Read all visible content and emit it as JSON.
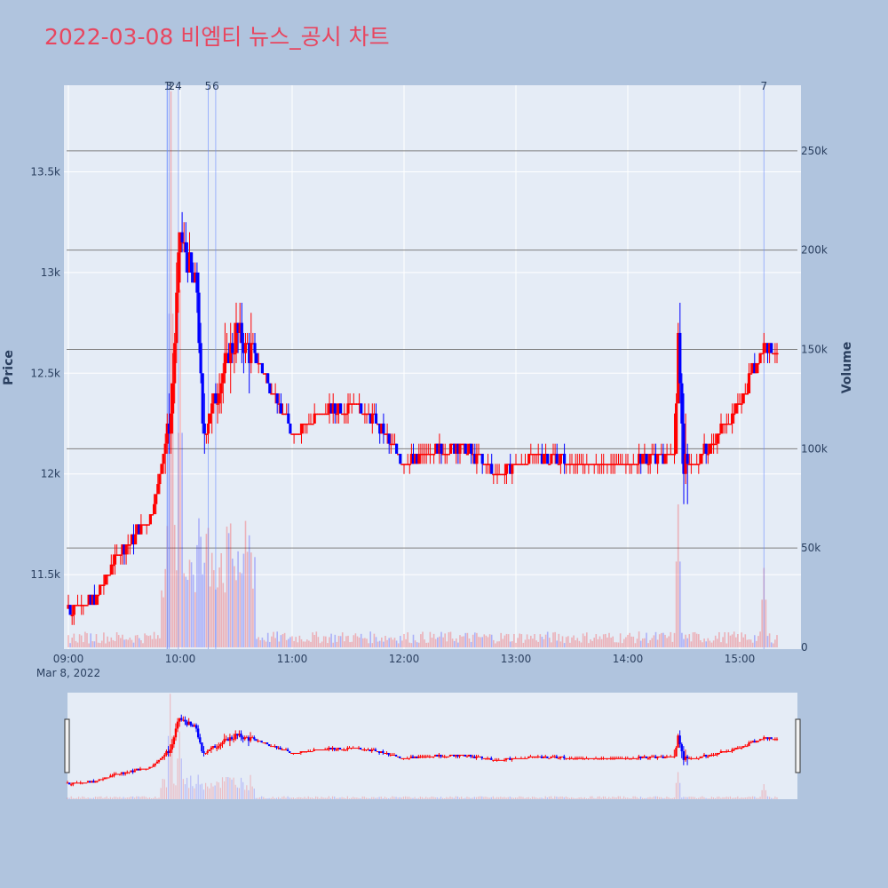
{
  "title": "2022-03-08 비엠티 뉴스_공시 차트",
  "colors": {
    "background": "#b0c4de",
    "plot_bg": "#e5ecf6",
    "up": "#ff0000",
    "down": "#0000ff",
    "title": "#e8465f",
    "hline": "#7f7f7f",
    "news_line": "#6b8cff"
  },
  "chart_data": {
    "type": "candlestick",
    "xlabel": "",
    "ylabel": "Price",
    "y2label": "Volume",
    "date_label": "Mar 8, 2022",
    "x_ticks": [
      "09:00",
      "10:00",
      "11:00",
      "12:00",
      "13:00",
      "14:00",
      "15:00"
    ],
    "x_range": [
      "09:00",
      "15:30"
    ],
    "price_ticks": [
      {
        "value": 11500,
        "label": "11.5k"
      },
      {
        "value": 12000,
        "label": "12k"
      },
      {
        "value": 12500,
        "label": "12.5k"
      },
      {
        "value": 13000,
        "label": "13k"
      },
      {
        "value": 13500,
        "label": "13.5k"
      }
    ],
    "price_range": [
      11130,
      13930
    ],
    "volume_ticks": [
      {
        "value": 0,
        "label": "0"
      },
      {
        "value": 50000,
        "label": "50k"
      },
      {
        "value": 100000,
        "label": "100k"
      },
      {
        "value": 150000,
        "label": "150k"
      },
      {
        "value": 200000,
        "label": "200k"
      },
      {
        "value": 250000,
        "label": "250k"
      }
    ],
    "volume_range": [
      0,
      283000
    ],
    "hlines": [
      250000,
      200000,
      150000,
      100000,
      50000
    ],
    "news_markers": [
      {
        "label": "1",
        "time": "09:53"
      },
      {
        "label": "2",
        "time": "09:53"
      },
      {
        "label": "3",
        "time": "09:54"
      },
      {
        "label": "4",
        "time": "09:59"
      },
      {
        "label": "5",
        "time": "10:15"
      },
      {
        "label": "6",
        "time": "10:19"
      },
      {
        "label": "7",
        "time": "15:13"
      }
    ],
    "key_points": [
      {
        "time": "09:00",
        "close": 11330
      },
      {
        "time": "09:15",
        "close": 11380
      },
      {
        "time": "09:25",
        "close": 11580
      },
      {
        "time": "09:45",
        "close": 11800
      },
      {
        "time": "09:55",
        "close": 12300
      },
      {
        "time": "10:00",
        "close": 13200
      },
      {
        "time": "10:09",
        "close": 12900
      },
      {
        "time": "10:12",
        "close": 12200
      },
      {
        "time": "10:30",
        "close": 12700
      },
      {
        "time": "10:45",
        "close": 12500
      },
      {
        "time": "11:00",
        "close": 12200
      },
      {
        "time": "11:15",
        "close": 12300
      },
      {
        "time": "11:35",
        "close": 12350
      },
      {
        "time": "11:50",
        "close": 12200
      },
      {
        "time": "12:00",
        "close": 12050
      },
      {
        "time": "12:30",
        "close": 12150
      },
      {
        "time": "12:50",
        "close": 12000
      },
      {
        "time": "13:10",
        "close": 12100
      },
      {
        "time": "13:30",
        "close": 12050
      },
      {
        "time": "14:00",
        "close": 12050
      },
      {
        "time": "14:25",
        "close": 12100
      },
      {
        "time": "14:27",
        "close": 12750
      },
      {
        "time": "14:30",
        "close": 12000
      },
      {
        "time": "14:45",
        "close": 12150
      },
      {
        "time": "15:00",
        "close": 12350
      },
      {
        "time": "15:13",
        "close": 12650
      },
      {
        "time": "15:20",
        "close": 12600
      }
    ],
    "volume_spikes": [
      {
        "time": "09:55",
        "volume": 280000
      },
      {
        "time": "10:00",
        "volume": 180000
      },
      {
        "time": "10:10",
        "volume": 65000
      },
      {
        "time": "14:27",
        "volume": 72000
      },
      {
        "time": "15:13",
        "volume": 40000
      },
      {
        "time": "15:30",
        "volume": 40000
      }
    ]
  }
}
